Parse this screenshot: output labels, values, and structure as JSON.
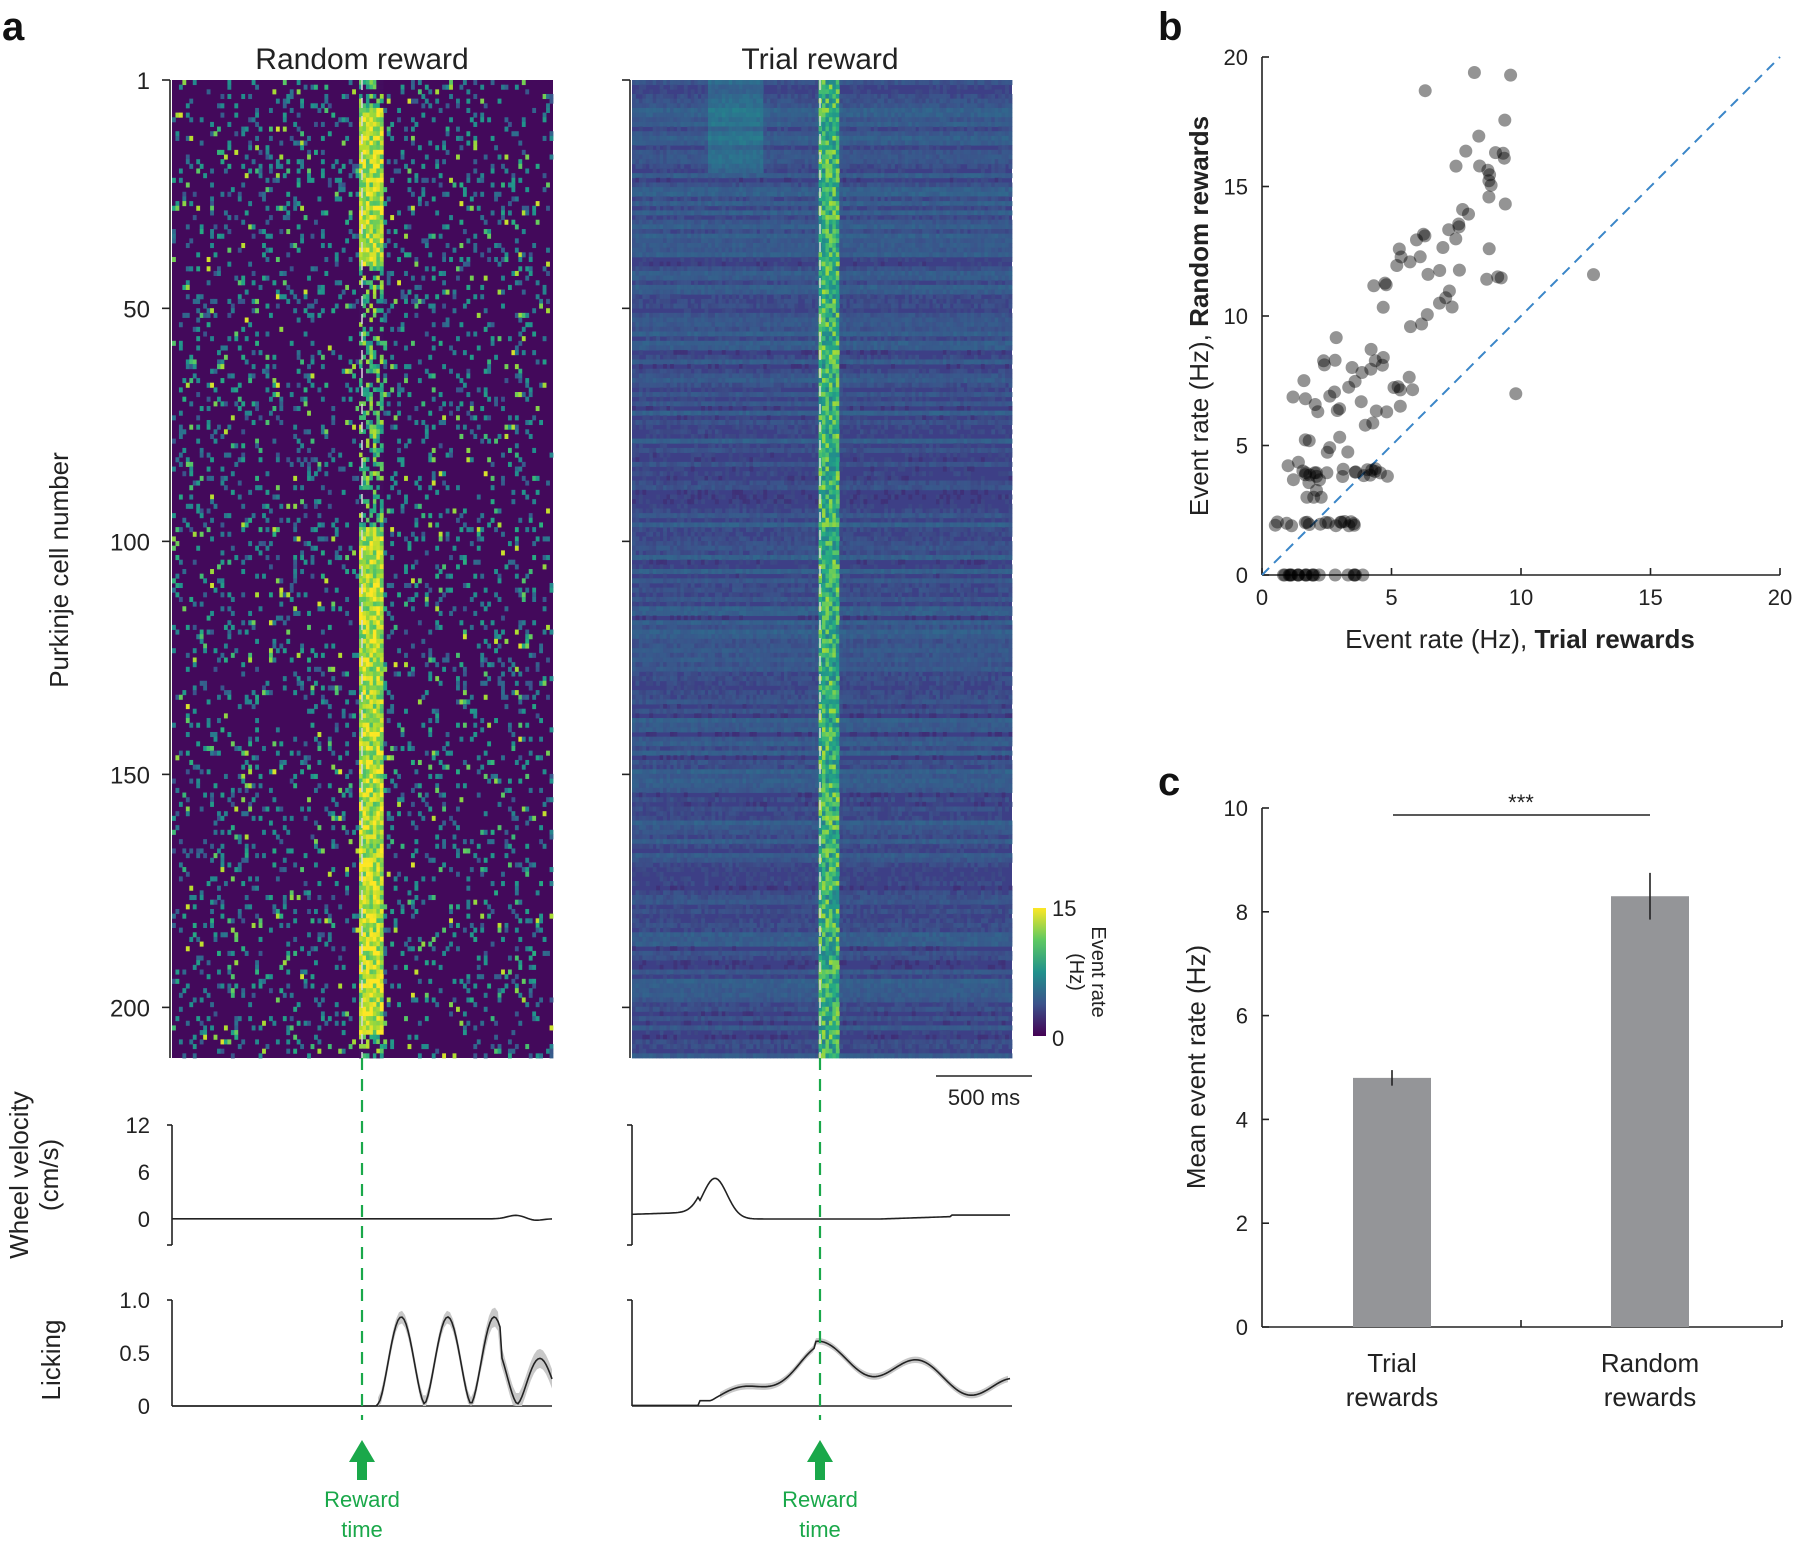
{
  "panels": {
    "a": "a",
    "b": "b",
    "c": "c"
  },
  "colors": {
    "viridis_low": "#3f1158",
    "viridis_high": "#fde725",
    "reward_green": "#1aa84a",
    "diag_blue": "#3a86c8",
    "bar_gray": "#949598"
  },
  "chart_data": [
    {
      "type": "heatmap",
      "id": "a-random",
      "title": "Random reward",
      "ylabel": "Purkinje cell number",
      "y_ticks": [
        1,
        50,
        100,
        150,
        200
      ],
      "n_cells": 210,
      "color_range": [
        0,
        15
      ]
    },
    {
      "type": "heatmap",
      "id": "a-trial",
      "title": "Trial reward",
      "n_cells": 210,
      "color_range": [
        0,
        15
      ]
    },
    {
      "type": "colorbar",
      "label": "Event rate (Hz)",
      "label_line1": "Event rate",
      "label_line2": "(Hz)",
      "ticks": [
        15,
        0
      ]
    },
    {
      "type": "scalebar",
      "label": "500 ms"
    },
    {
      "type": "line",
      "id": "a-wheel",
      "ylabel": "Wheel velocity (cm/s)",
      "ylabel_line1": "Wheel velocity",
      "ylabel_line2": "(cm/s)",
      "y_ticks": [
        12,
        6,
        0
      ],
      "ylim": [
        0,
        12
      ]
    },
    {
      "type": "line",
      "id": "a-licking",
      "ylabel": "Licking",
      "y_ticks": [
        "1.0",
        "0.5",
        "0"
      ],
      "ylim": [
        0,
        1
      ]
    },
    {
      "type": "annotation",
      "label": "Reward time",
      "label_line1": "Reward",
      "label_line2": "time"
    },
    {
      "type": "scatter",
      "id": "b",
      "xlabel": "Event rate (Hz),",
      "xlabel_bold": "Trial rewards",
      "ylabel": "Event rate (Hz),",
      "ylabel_bold": "Random rewards",
      "xlim": [
        0,
        20
      ],
      "ylim": [
        0,
        20
      ],
      "x_ticks": [
        0,
        5,
        10,
        15,
        20
      ],
      "y_ticks": [
        0,
        5,
        10,
        15,
        20
      ],
      "diagonal": "y = x"
    },
    {
      "type": "bar",
      "id": "c",
      "categories": [
        "Trial rewards",
        "Random rewards"
      ],
      "category_lines": [
        [
          "Trial",
          "rewards"
        ],
        [
          "Random",
          "rewards"
        ]
      ],
      "values": [
        4.8,
        8.3
      ],
      "errors": [
        0.15,
        0.45
      ],
      "ylabel": "Mean event rate (Hz)",
      "ylim": [
        0,
        10
      ],
      "y_ticks": [
        0,
        2,
        4,
        6,
        8,
        10
      ],
      "significance": "***"
    }
  ]
}
